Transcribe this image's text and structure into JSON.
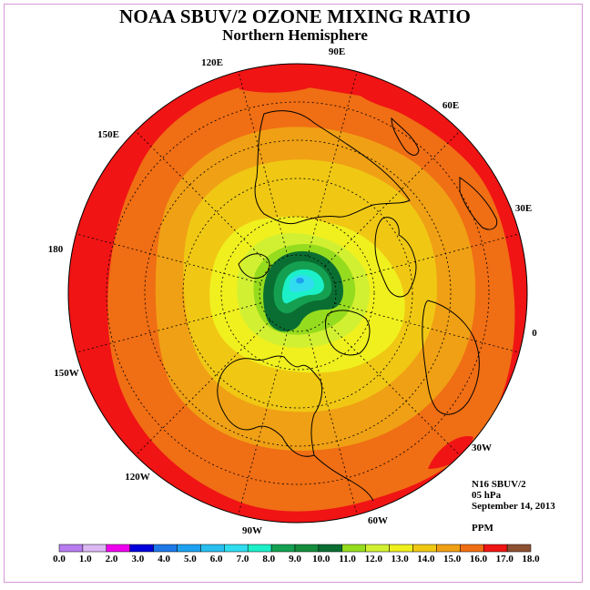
{
  "title": "NOAA SBUV/2 OZONE MIXING RATIO",
  "subtitle": "Northern Hemisphere",
  "info": {
    "instrument": "N16 SBUV/2",
    "pressure_level": "05 hPa",
    "date": "September 14, 2013",
    "units": "PPM"
  },
  "longitude_labels": [
    "90E",
    "60E",
    "30E",
    "0",
    "30W",
    "60W",
    "90W",
    "120W",
    "150W",
    "180",
    "150E",
    "120E"
  ],
  "colorbar": {
    "ticks": [
      "0.0",
      "1.0",
      "2.0",
      "3.0",
      "4.0",
      "5.0",
      "6.0",
      "7.0",
      "8.0",
      "9.0",
      "10.0",
      "11.0",
      "12.0",
      "13.0",
      "14.0",
      "15.0",
      "16.0",
      "17.0",
      "18.0"
    ],
    "colors": [
      "#b77cf0",
      "#dcb8f4",
      "#ee00ee",
      "#0000dc",
      "#1e78e6",
      "#1ea0f0",
      "#28bef0",
      "#30dcf0",
      "#1cf0c8",
      "#14a050",
      "#148c3c",
      "#0a6e32",
      "#96dc1e",
      "#d2f032",
      "#f0f01e",
      "#f0c814",
      "#f0a014",
      "#f06e14",
      "#f01414",
      "#8c5032"
    ]
  },
  "legend_title": "PPM"
}
